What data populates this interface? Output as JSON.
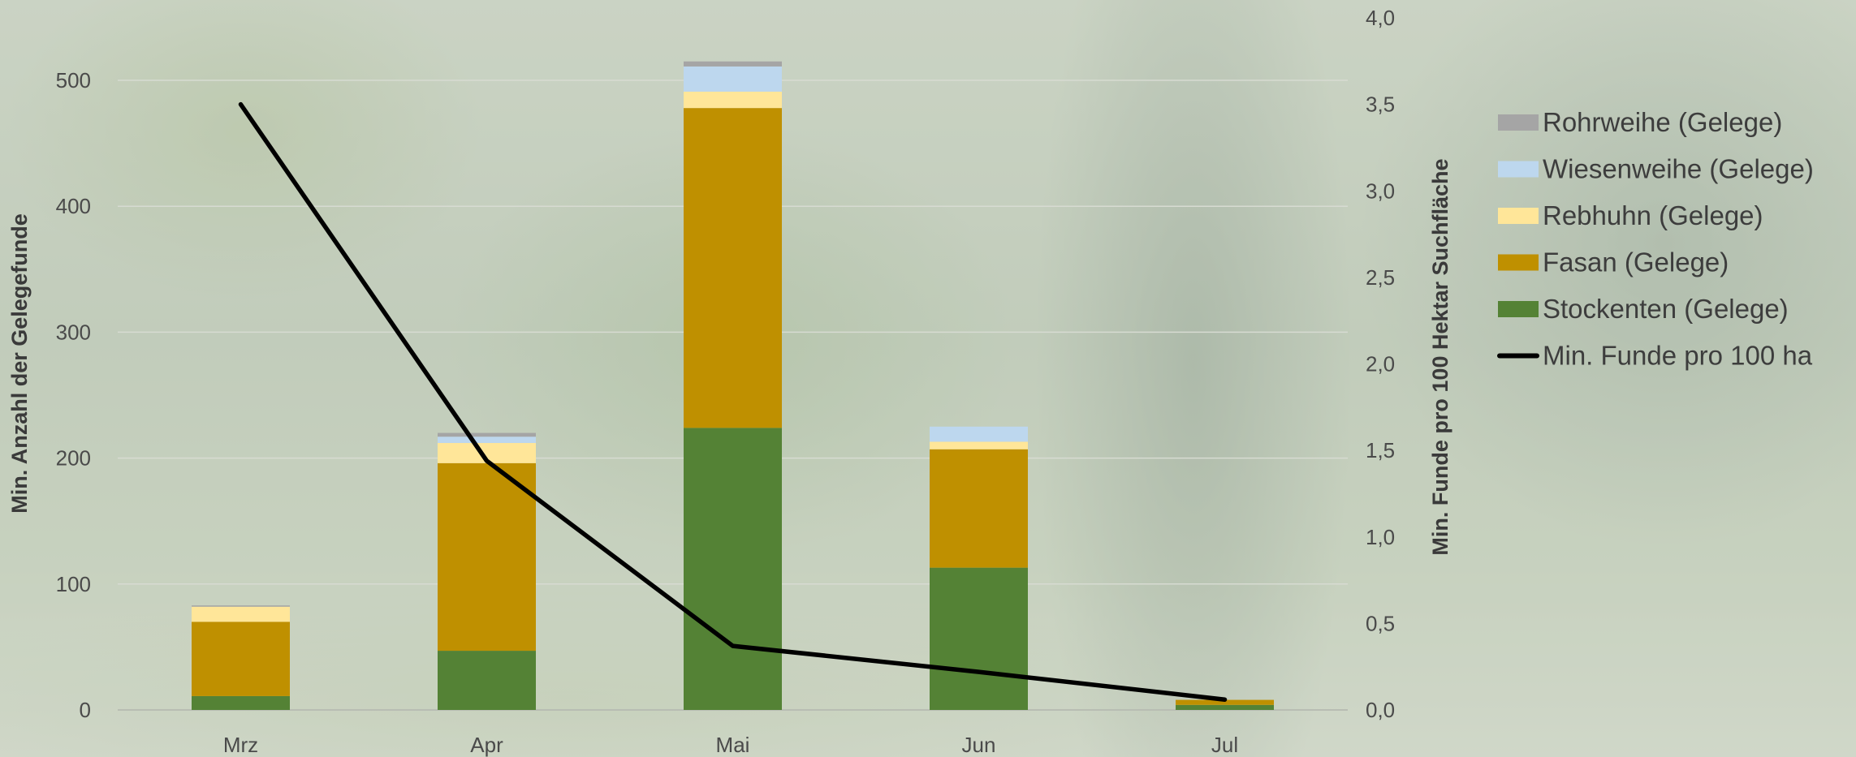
{
  "chart_data": {
    "type": "bar",
    "stacked": true,
    "categories": [
      "Mrz",
      "Apr",
      "Mai",
      "Jun",
      "Jul"
    ],
    "series": [
      {
        "name": "Stockenten (Gelege)",
        "color": "#548235",
        "values": [
          11,
          47,
          224,
          113,
          4
        ]
      },
      {
        "name": "Fasan (Gelege)",
        "color": "#bf9000",
        "values": [
          59,
          149,
          254,
          94,
          4
        ]
      },
      {
        "name": "Rebhuhn (Gelege)",
        "color": "#ffe699",
        "values": [
          12,
          16,
          13,
          6,
          0
        ]
      },
      {
        "name": "Wiesenweihe (Gelege)",
        "color": "#bdd7ee",
        "values": [
          0,
          5,
          20,
          12,
          0
        ]
      },
      {
        "name": "Rohrweihe (Gelege)",
        "color": "#a5a5a5",
        "values": [
          1,
          3,
          4,
          0,
          0
        ]
      }
    ],
    "line_series": {
      "name": "Min. Funde pro 100 ha",
      "color": "#000000",
      "axis": "right",
      "values": [
        3.5,
        1.44,
        0.37,
        0.22,
        0.06
      ]
    },
    "ylabel": "Min. Anzahl der Gelegefunde",
    "ylabel_right": "Min. Funde pro 100 Hektar Suchfläche",
    "ylim": [
      0,
      550
    ],
    "ylim_right": [
      0,
      4.0
    ],
    "yticks": [
      0,
      100,
      200,
      300,
      400,
      500
    ],
    "yticks_right": [
      "0,0",
      "0,5",
      "1,0",
      "1,5",
      "2,0",
      "2,5",
      "3,0",
      "3,5",
      "4,0"
    ],
    "legend_order": [
      "Rohrweihe (Gelege)",
      "Wiesenweihe (Gelege)",
      "Rebhuhn (Gelege)",
      "Fasan (Gelege)",
      "Stockenten (Gelege)",
      "Min. Funde pro 100 ha"
    ],
    "legend_position": "right",
    "grid": true
  }
}
